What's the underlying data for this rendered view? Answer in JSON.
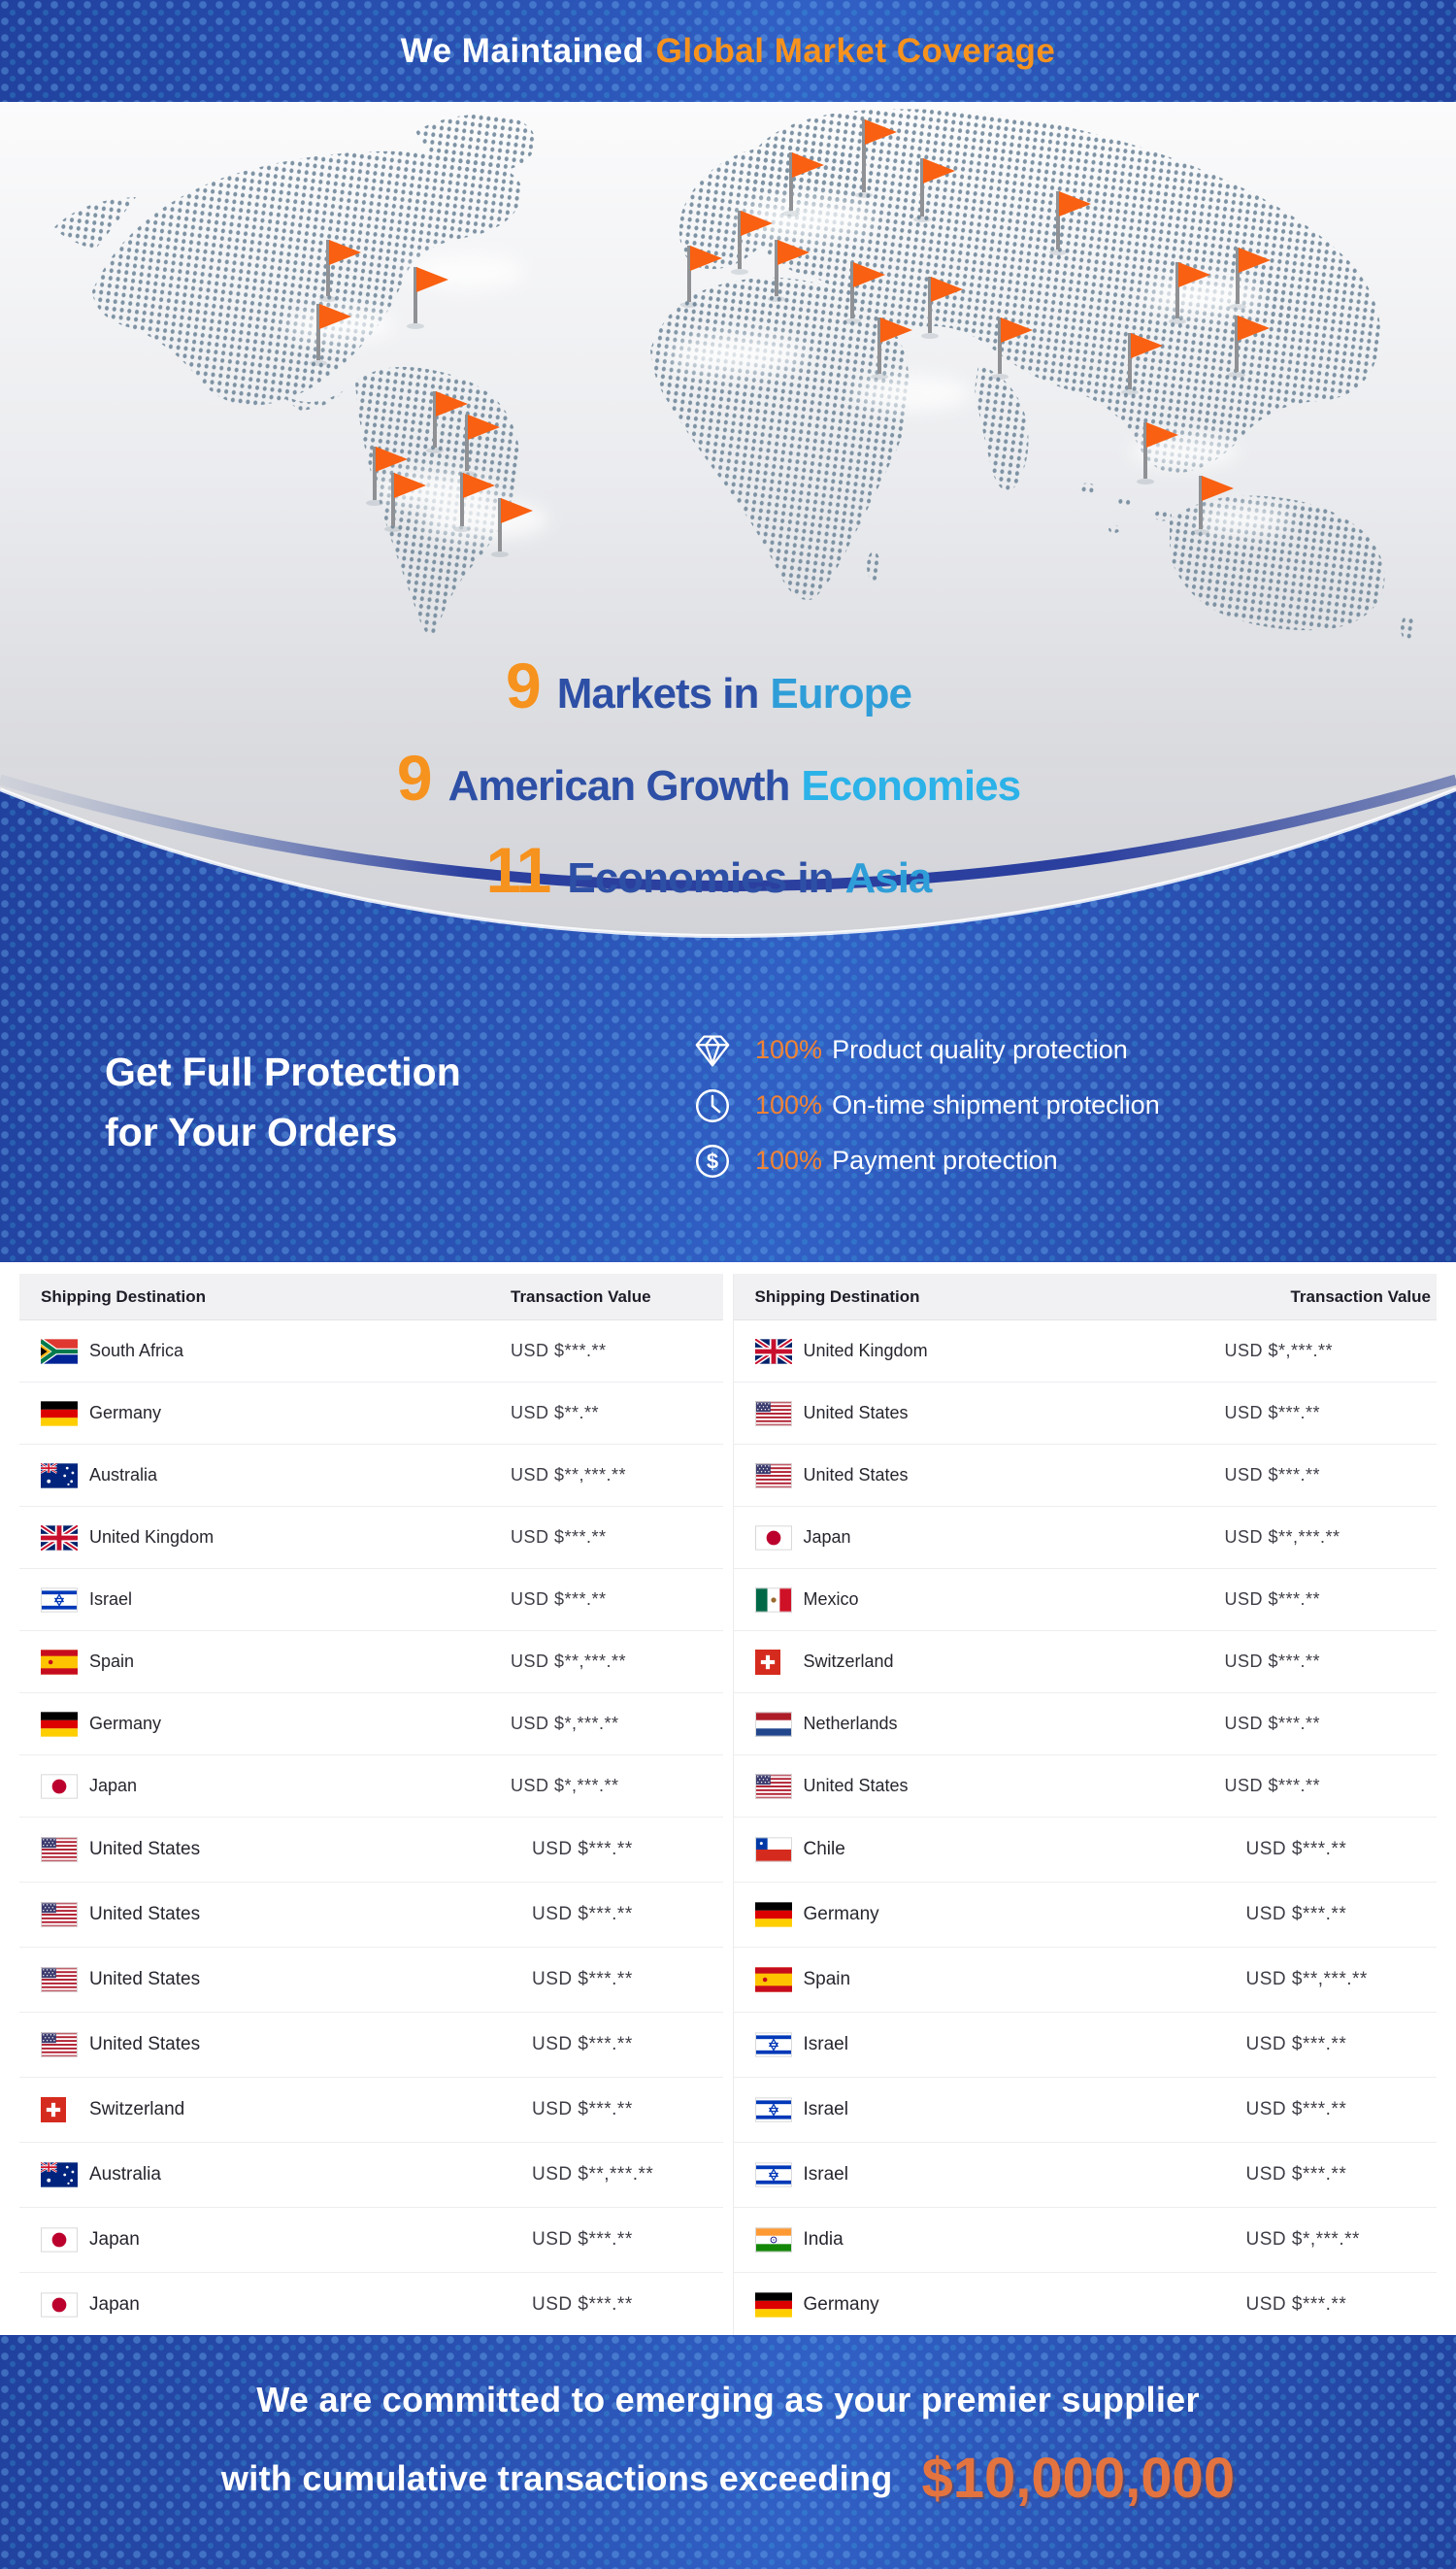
{
  "top_banner": {
    "text_white": "We Maintained",
    "text_orange": "Global Market Coverage"
  },
  "map": {
    "flag_marker_icon": "orange-flag-icon",
    "marker_count": 26
  },
  "stats": [
    {
      "number": "9",
      "label_dark": "Markets in",
      "label_light": "Europe"
    },
    {
      "number": "9",
      "label_dark": "American Growth",
      "label_light": "Economies"
    },
    {
      "number": "11",
      "label_dark": "Economies in",
      "label_light": "Asia"
    }
  ],
  "protection": {
    "title_line1": "Get Full Protection",
    "title_line2": "for Your Orders",
    "items": [
      {
        "icon": "diamond-icon",
        "percent": "100%",
        "label": "Product quality protection"
      },
      {
        "icon": "clock-icon",
        "percent": "100%",
        "label": "On-time shipment proteclion"
      },
      {
        "icon": "dollar-icon",
        "percent": "100%",
        "label": "Payment protection"
      }
    ]
  },
  "table": {
    "headers": [
      "Shipping Destination",
      "Transaction Value"
    ],
    "left_rows": [
      {
        "country": "South Africa",
        "flag": "za",
        "value": "USD $***.**"
      },
      {
        "country": "Germany",
        "flag": "de",
        "value": "USD $**.**"
      },
      {
        "country": "Australia",
        "flag": "au",
        "value": "USD $**,***.**"
      },
      {
        "country": "United Kingdom",
        "flag": "gb",
        "value": "USD $***.**"
      },
      {
        "country": "Israel",
        "flag": "il",
        "value": "USD $***.**"
      },
      {
        "country": "Spain",
        "flag": "es",
        "value": "USD $**,***.**"
      },
      {
        "country": "Germany",
        "flag": "de",
        "value": "USD $*,***.**"
      },
      {
        "country": "Japan",
        "flag": "jp",
        "value": "USD $*,***.**"
      },
      {
        "country": "United States",
        "flag": "us",
        "value": "USD $***.**"
      },
      {
        "country": "United States",
        "flag": "us",
        "value": "USD $***.**"
      },
      {
        "country": "United States",
        "flag": "us",
        "value": "USD $***.**"
      },
      {
        "country": "United States",
        "flag": "us",
        "value": "USD $***.**"
      },
      {
        "country": "Switzerland",
        "flag": "ch",
        "value": "USD $***.**"
      },
      {
        "country": "Australia",
        "flag": "au",
        "value": "USD $**,***.**"
      },
      {
        "country": "Japan",
        "flag": "jp",
        "value": "USD $***.**"
      },
      {
        "country": "Japan",
        "flag": "jp",
        "value": "USD $***.**"
      }
    ],
    "right_rows": [
      {
        "country": "United Kingdom",
        "flag": "gb",
        "value": "USD $*,***.**"
      },
      {
        "country": "United States",
        "flag": "us",
        "value": "USD $***.**"
      },
      {
        "country": "United States",
        "flag": "us",
        "value": "USD $***.**"
      },
      {
        "country": "Japan",
        "flag": "jp",
        "value": "USD $**,***.**"
      },
      {
        "country": "Mexico",
        "flag": "mx",
        "value": "USD $***.**"
      },
      {
        "country": "Switzerland",
        "flag": "ch",
        "value": "USD $***.**"
      },
      {
        "country": "Netherlands",
        "flag": "nl",
        "value": "USD $***.**"
      },
      {
        "country": "United States",
        "flag": "us",
        "value": "USD $***.**"
      },
      {
        "country": "Chile",
        "flag": "cl",
        "value": "USD $***.**"
      },
      {
        "country": "Germany",
        "flag": "de",
        "value": "USD $***.**"
      },
      {
        "country": "Spain",
        "flag": "es",
        "value": "USD $**,***.**"
      },
      {
        "country": "Israel",
        "flag": "il",
        "value": "USD $***.**"
      },
      {
        "country": "Israel",
        "flag": "il",
        "value": "USD $***.**"
      },
      {
        "country": "Israel",
        "flag": "il",
        "value": "USD $***.**"
      },
      {
        "country": "India",
        "flag": "in",
        "value": "USD $*,***.**"
      },
      {
        "country": "Germany",
        "flag": "de",
        "value": "USD $***.**"
      }
    ]
  },
  "bottom_banner": {
    "line1": "We are committed to emerging as your premier supplier",
    "line2_prefix": "with cumulative transactions exceeding",
    "amount": "$10,000,000"
  },
  "colors": {
    "accent_orange": "#f6921e",
    "flag_orange": "#f96011",
    "deep_blue": "#2b54b6",
    "stat_dark_blue": "#2d4fa5",
    "stat_light_blue": "#2f9ed8",
    "amount_orange": "#e4743f"
  }
}
